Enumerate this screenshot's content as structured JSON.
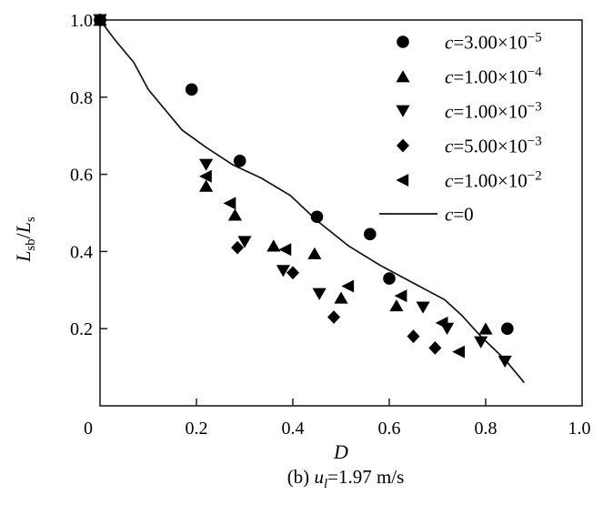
{
  "figure": {
    "caption": {
      "prefix": "(b) ",
      "variable": "u",
      "subscript": "l",
      "rest": "=1.97 m/s"
    }
  },
  "colors": {
    "marker": "#000000",
    "curve": "#111111",
    "frame": "#1f1f1f",
    "text": "#000000",
    "background": "#ffffff"
  },
  "chart_data": {
    "type": "scatter",
    "title": "",
    "xlabel": "D",
    "ylabel_parts": {
      "num_base": "L",
      "num_sub": "sb",
      "slash": "/",
      "den_base": "L",
      "den_sub": "s"
    },
    "xlim": [
      0,
      1.0
    ],
    "ylim": [
      0,
      1.0
    ],
    "x_ticks": [
      0,
      0.2,
      0.4,
      0.6,
      0.8,
      1.0
    ],
    "x_tick_labels": [
      "0",
      "0.2",
      "0.4",
      "0.6",
      "0.8",
      "1.0"
    ],
    "y_ticks": [
      0.2,
      0.4,
      0.6,
      0.8,
      1.0
    ],
    "y_tick_labels": [
      "0.2",
      "0.4",
      "0.6",
      "0.8",
      "1.0"
    ],
    "grid": false,
    "legend_position": "top-right-inside",
    "series": [
      {
        "marker": "circle",
        "label": {
          "var": "c",
          "eq": "=3.00×10",
          "exp": "−5"
        },
        "points": [
          [
            0,
            1.0
          ],
          [
            0.19,
            0.82
          ],
          [
            0.29,
            0.635
          ],
          [
            0.45,
            0.49
          ],
          [
            0.56,
            0.445
          ],
          [
            0.6,
            0.33
          ],
          [
            0.845,
            0.2
          ]
        ]
      },
      {
        "marker": "triangle-up",
        "label": {
          "var": "c",
          "eq": "=1.00×10",
          "exp": "−4"
        },
        "points": [
          [
            0,
            1.0
          ],
          [
            0.22,
            0.57
          ],
          [
            0.28,
            0.495
          ],
          [
            0.36,
            0.415
          ],
          [
            0.445,
            0.395
          ],
          [
            0.5,
            0.28
          ],
          [
            0.615,
            0.26
          ],
          [
            0.8,
            0.2
          ]
        ]
      },
      {
        "marker": "triangle-down",
        "label": {
          "var": "c",
          "eq": "=1.00×10",
          "exp": "−3"
        },
        "points": [
          [
            0,
            1.0
          ],
          [
            0.22,
            0.625
          ],
          [
            0.3,
            0.425
          ],
          [
            0.38,
            0.35
          ],
          [
            0.455,
            0.29
          ],
          [
            0.67,
            0.255
          ],
          [
            0.72,
            0.2
          ],
          [
            0.79,
            0.165
          ],
          [
            0.84,
            0.115
          ]
        ]
      },
      {
        "marker": "diamond",
        "label": {
          "var": "c",
          "eq": "=5.00×10",
          "exp": "−3"
        },
        "points": [
          [
            0,
            1.0
          ],
          [
            0.285,
            0.41
          ],
          [
            0.4,
            0.345
          ],
          [
            0.485,
            0.23
          ],
          [
            0.65,
            0.18
          ],
          [
            0.695,
            0.15
          ]
        ]
      },
      {
        "marker": "triangle-left",
        "label": {
          "var": "c",
          "eq": "=1.00×10",
          "exp": "−2"
        },
        "points": [
          [
            0,
            1.0
          ],
          [
            0.22,
            0.595
          ],
          [
            0.27,
            0.525
          ],
          [
            0.385,
            0.405
          ],
          [
            0.515,
            0.31
          ],
          [
            0.625,
            0.285
          ],
          [
            0.71,
            0.215
          ],
          [
            0.745,
            0.14
          ]
        ]
      }
    ],
    "line": {
      "marker": "line",
      "label": {
        "var": "c",
        "eq": "=0",
        "exp": ""
      },
      "points": [
        [
          0,
          1.0
        ],
        [
          0.03,
          0.95
        ],
        [
          0.07,
          0.89
        ],
        [
          0.1,
          0.82
        ],
        [
          0.14,
          0.76
        ],
        [
          0.17,
          0.715
        ],
        [
          0.22,
          0.67
        ],
        [
          0.275,
          0.625
        ],
        [
          0.335,
          0.59
        ],
        [
          0.395,
          0.545
        ],
        [
          0.45,
          0.48
        ],
        [
          0.515,
          0.415
        ],
        [
          0.58,
          0.365
        ],
        [
          0.64,
          0.325
        ],
        [
          0.715,
          0.275
        ],
        [
          0.75,
          0.235
        ],
        [
          0.79,
          0.18
        ],
        [
          0.84,
          0.12
        ],
        [
          0.88,
          0.06
        ]
      ]
    }
  }
}
